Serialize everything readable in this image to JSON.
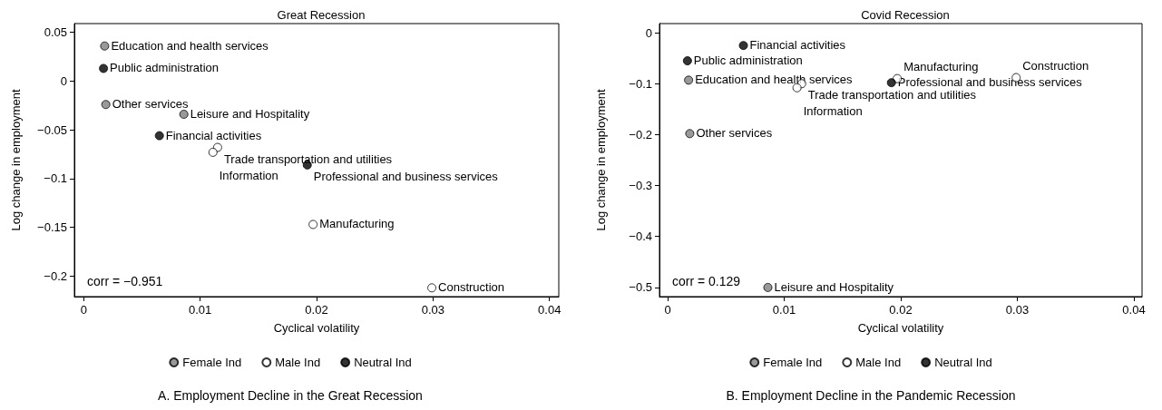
{
  "chart_data": [
    {
      "type": "scatter",
      "title": "Great Recession",
      "xlabel": "Cyclical volatility",
      "ylabel": "Log change in employment",
      "xlim": [
        -0.0008,
        0.0408
      ],
      "xticks": [
        0,
        0.01,
        0.02,
        0.03,
        0.04
      ],
      "ylim": [
        -0.221,
        0.059
      ],
      "yticks": [
        -0.2,
        -0.15,
        -0.1,
        -0.05,
        0,
        0.05
      ],
      "grid": false,
      "legend": "bottom",
      "marker": "circle",
      "series": [
        {
          "name": "Female Ind",
          "color": "#808080",
          "x": [
            0.0018,
            0.0019,
            0.0086
          ],
          "values": [
            0.036,
            -0.024,
            -0.034
          ]
        },
        {
          "name": "Male Ind",
          "color": "#ffffff",
          "x": [
            0.0115,
            0.0111,
            0.0197,
            0.0299
          ],
          "values": [
            -0.068,
            -0.073,
            -0.147,
            -0.212
          ]
        },
        {
          "name": "Neutral Ind",
          "color": "#000000",
          "x": [
            0.0017,
            0.0065,
            0.0192
          ],
          "values": [
            0.013,
            -0.056,
            -0.086
          ]
        }
      ],
      "annotations": [
        "corr = −0.951",
        "A. Employment Decline in the Great Recession",
        {
          "text": "Education and health services",
          "x": 0.0018,
          "y": 0.036
        },
        {
          "text": "Public administration",
          "x": 0.0017,
          "y": 0.013
        },
        {
          "text": "Other services",
          "x": 0.0019,
          "y": -0.024
        },
        {
          "text": "Leisure and Hospitality",
          "x": 0.0086,
          "y": -0.034
        },
        {
          "text": "Financial activities",
          "x": 0.0065,
          "y": -0.056
        },
        {
          "text": "Trade transportation and utilities",
          "x": 0.0115,
          "y": -0.068
        },
        {
          "text": "Information",
          "x": 0.0111,
          "y": -0.073
        },
        {
          "text": "Professional and business services",
          "x": 0.0192,
          "y": -0.086
        },
        {
          "text": "Manufacturing",
          "x": 0.0197,
          "y": -0.147
        },
        {
          "text": "Construction",
          "x": 0.0299,
          "y": -0.212
        }
      ]
    },
    {
      "type": "scatter",
      "title": "Covid Recession",
      "xlabel": "Cyclical volatility",
      "ylabel": "Log change in employment",
      "xlim": [
        -0.0007,
        0.0407
      ],
      "xticks": [
        0,
        0.01,
        0.02,
        0.03,
        0.04
      ],
      "ylim": [
        -0.518,
        0.018
      ],
      "yticks": [
        -0.5,
        -0.4,
        -0.3,
        -0.2,
        -0.1,
        0
      ],
      "grid": false,
      "legend": "bottom",
      "marker": "circle",
      "series": [
        {
          "name": "Female Ind",
          "color": "#808080",
          "x": [
            0.0018,
            0.0019,
            0.0086
          ],
          "values": [
            -0.093,
            -0.198,
            -0.5
          ]
        },
        {
          "name": "Male Ind",
          "color": "#ffffff",
          "x": [
            0.0115,
            0.0111,
            0.0197,
            0.0299
          ],
          "values": [
            -0.1,
            -0.108,
            -0.09,
            -0.088
          ]
        },
        {
          "name": "Neutral Ind",
          "color": "#000000",
          "x": [
            0.0017,
            0.0065,
            0.0192
          ],
          "values": [
            -0.055,
            -0.025,
            -0.098
          ]
        }
      ],
      "annotations": [
        "corr = 0.129",
        "B. Employment Decline in the Pandemic Recession",
        {
          "text": "Education and health services",
          "x": 0.0018,
          "y": -0.093
        },
        {
          "text": "Public administration",
          "x": 0.0017,
          "y": -0.055
        },
        {
          "text": "Other services",
          "x": 0.0019,
          "y": -0.198
        },
        {
          "text": "Leisure and Hospitality",
          "x": 0.0086,
          "y": -0.5
        },
        {
          "text": "Financial activities",
          "x": 0.0065,
          "y": -0.025
        },
        {
          "text": "Trade transportation and utilities",
          "x": 0.0115,
          "y": -0.1
        },
        {
          "text": "Information",
          "x": 0.0111,
          "y": -0.108
        },
        {
          "text": "Professional and business services",
          "x": 0.0192,
          "y": -0.098
        },
        {
          "text": "Manufacturing",
          "x": 0.0197,
          "y": -0.09
        },
        {
          "text": "Construction",
          "x": 0.0299,
          "y": -0.088
        }
      ]
    }
  ]
}
